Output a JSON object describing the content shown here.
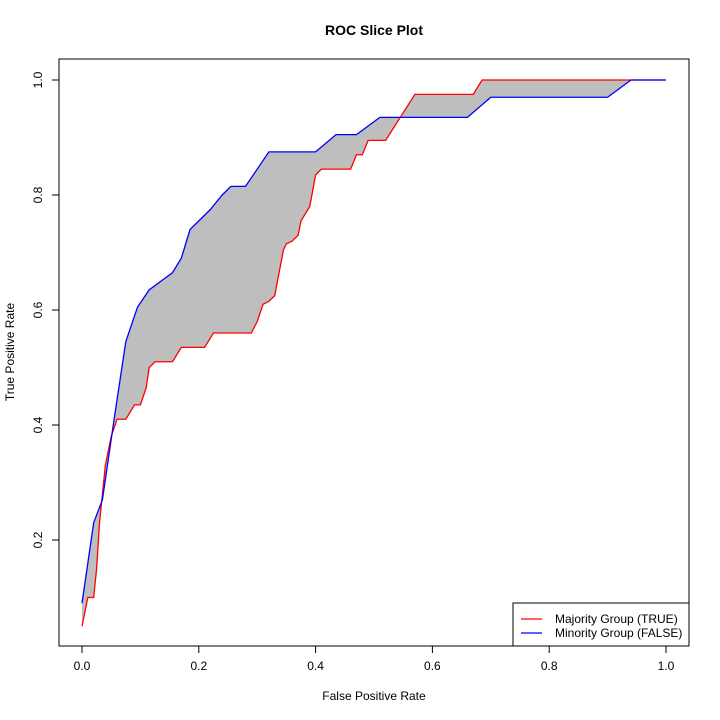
{
  "chart_data": {
    "type": "line",
    "title": "ROC Slice Plot",
    "xlabel": "False Positive Rate",
    "ylabel": "True Positive Rate",
    "xlim": [
      0,
      1
    ],
    "ylim": [
      0.05,
      1
    ],
    "xticks": [
      "0.0",
      "0.2",
      "0.4",
      "0.6",
      "0.8",
      "1.0"
    ],
    "yticks": [
      "0.2",
      "0.4",
      "0.6",
      "0.8",
      "1.0"
    ],
    "grid": false,
    "legend_position": "bottom-right",
    "fill_between": {
      "color": "#bebebe"
    },
    "series": [
      {
        "name": "Majority Group (TRUE)",
        "color": "#ff0000",
        "points": [
          [
            0.0,
            0.05
          ],
          [
            0.01,
            0.1
          ],
          [
            0.02,
            0.1
          ],
          [
            0.025,
            0.15
          ],
          [
            0.03,
            0.23
          ],
          [
            0.04,
            0.33
          ],
          [
            0.05,
            0.38
          ],
          [
            0.06,
            0.41
          ],
          [
            0.075,
            0.41
          ],
          [
            0.09,
            0.435
          ],
          [
            0.1,
            0.435
          ],
          [
            0.11,
            0.465
          ],
          [
            0.115,
            0.5
          ],
          [
            0.125,
            0.51
          ],
          [
            0.155,
            0.51
          ],
          [
            0.17,
            0.535
          ],
          [
            0.21,
            0.535
          ],
          [
            0.225,
            0.56
          ],
          [
            0.29,
            0.56
          ],
          [
            0.3,
            0.58
          ],
          [
            0.31,
            0.61
          ],
          [
            0.32,
            0.615
          ],
          [
            0.33,
            0.625
          ],
          [
            0.345,
            0.705
          ],
          [
            0.35,
            0.715
          ],
          [
            0.36,
            0.72
          ],
          [
            0.37,
            0.73
          ],
          [
            0.375,
            0.755
          ],
          [
            0.39,
            0.78
          ],
          [
            0.4,
            0.835
          ],
          [
            0.41,
            0.845
          ],
          [
            0.46,
            0.845
          ],
          [
            0.47,
            0.87
          ],
          [
            0.48,
            0.87
          ],
          [
            0.49,
            0.895
          ],
          [
            0.52,
            0.895
          ],
          [
            0.57,
            0.975
          ],
          [
            0.67,
            0.975
          ],
          [
            0.685,
            1.0
          ],
          [
            1.0,
            1.0
          ]
        ]
      },
      {
        "name": "Minority Group (FALSE)",
        "color": "#0000ff",
        "points": [
          [
            0.0,
            0.09
          ],
          [
            0.02,
            0.23
          ],
          [
            0.035,
            0.27
          ],
          [
            0.045,
            0.34
          ],
          [
            0.055,
            0.41
          ],
          [
            0.075,
            0.545
          ],
          [
            0.095,
            0.605
          ],
          [
            0.115,
            0.635
          ],
          [
            0.155,
            0.665
          ],
          [
            0.17,
            0.69
          ],
          [
            0.185,
            0.74
          ],
          [
            0.22,
            0.775
          ],
          [
            0.24,
            0.8
          ],
          [
            0.255,
            0.815
          ],
          [
            0.28,
            0.815
          ],
          [
            0.32,
            0.875
          ],
          [
            0.4,
            0.875
          ],
          [
            0.435,
            0.905
          ],
          [
            0.47,
            0.905
          ],
          [
            0.51,
            0.935
          ],
          [
            0.66,
            0.935
          ],
          [
            0.7,
            0.97
          ],
          [
            0.9,
            0.97
          ],
          [
            0.94,
            1.0
          ],
          [
            1.0,
            1.0
          ]
        ]
      }
    ]
  }
}
